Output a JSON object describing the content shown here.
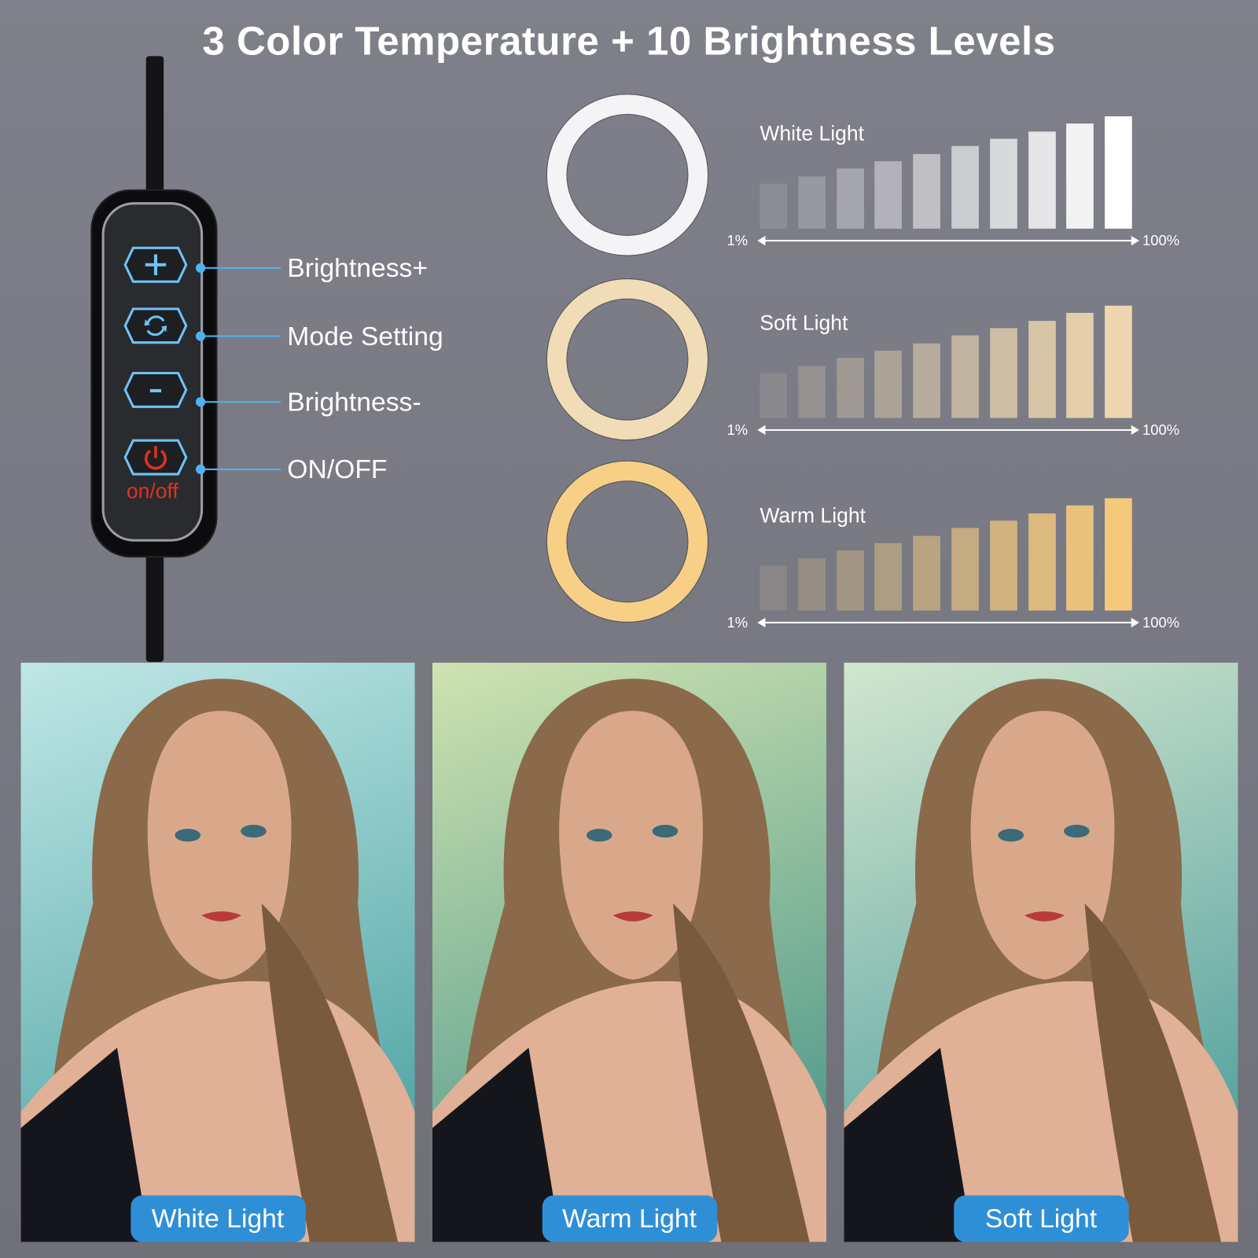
{
  "title": "3 Color Temperature + 10 Brightness Levels",
  "remote": {
    "power_text": "on/off",
    "callouts": [
      {
        "label": "Brightness+",
        "icon": "plus-icon"
      },
      {
        "label": "Mode Setting",
        "icon": "cycle-icon"
      },
      {
        "label": "Brightness-",
        "icon": "minus-icon"
      },
      {
        "label": "ON/OFF",
        "icon": "power-icon"
      }
    ],
    "accent_color": "#4db3f0",
    "power_color": "#e0321e"
  },
  "modes": [
    {
      "label": "White Light",
      "ring_color": "#f4f4f6",
      "bar_color": "#ffffff",
      "min_label": "1%",
      "max_label": "100%"
    },
    {
      "label": "Soft Light",
      "ring_color": "#f0dcb6",
      "bar_color": "#eed7b0",
      "min_label": "1%",
      "max_label": "100%"
    },
    {
      "label": "Warm Light",
      "ring_color": "#f7cf86",
      "bar_color": "#f4c97c",
      "min_label": "1%",
      "max_label": "100%"
    }
  ],
  "brightness_levels": 10,
  "photos": [
    {
      "label": "White Light",
      "bg_top": "#bfe7e6",
      "bg_bottom": "#3f9a9a"
    },
    {
      "label": "Warm Light",
      "bg_top": "#cfe3b0",
      "bg_bottom": "#3c8d86"
    },
    {
      "label": "Soft Light",
      "bg_top": "#d2e6cf",
      "bg_bottom": "#3f9596"
    }
  ]
}
